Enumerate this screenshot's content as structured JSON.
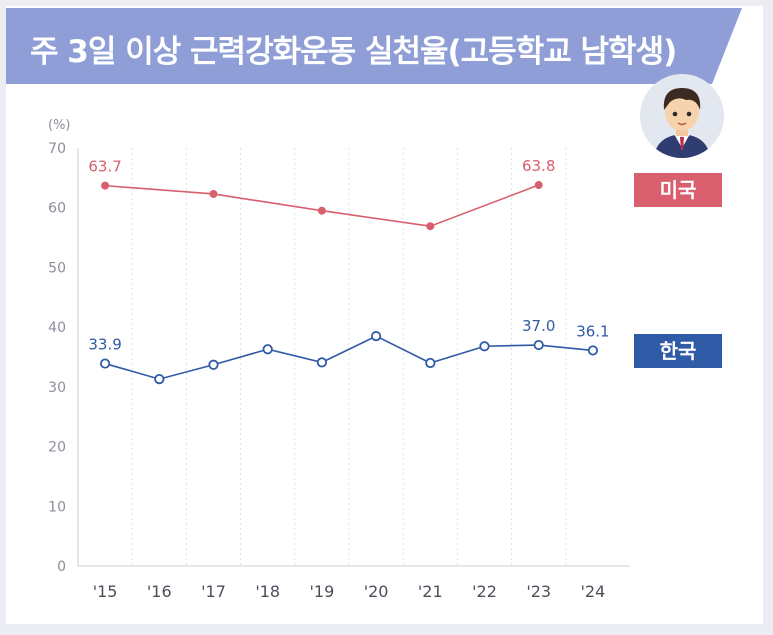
{
  "title": "주 3일 이상 근력강화운동 실천율(고등학교 남학생)",
  "colors": {
    "banner": "#8f9ed6",
    "us": "#d95f6e",
    "korea": "#2e5aa6",
    "grid": "#dde1e8",
    "axis_text": "#8a8f9a"
  },
  "icons": {
    "avatar": "student-avatar-icon"
  },
  "chart_data": {
    "type": "line",
    "title": "주 3일 이상 근력강화운동 실천율(고등학교 남학생)",
    "ylabel": "(%)",
    "ylim": [
      0,
      70
    ],
    "yticks": [
      0,
      10,
      20,
      30,
      40,
      50,
      60,
      70
    ],
    "grid": "vertical dotted",
    "categories": [
      "'15",
      "'16",
      "'17",
      "'18",
      "'19",
      "'20",
      "'21",
      "'22",
      "'23",
      "'24"
    ],
    "series": [
      {
        "name": "미국",
        "color": "#d95f6e",
        "values": [
          63.7,
          null,
          62.3,
          null,
          59.5,
          null,
          56.9,
          null,
          63.8,
          null
        ],
        "labels": [
          "63.7",
          "",
          "",
          "",
          "",
          "",
          "",
          "",
          "63.8",
          ""
        ]
      },
      {
        "name": "한국",
        "color": "#2e5aa6",
        "values": [
          33.9,
          31.3,
          33.7,
          36.3,
          34.1,
          38.5,
          34.0,
          36.8,
          37.0,
          36.1
        ],
        "labels": [
          "33.9",
          "",
          "",
          "",
          "",
          "",
          "",
          "",
          "37.0",
          "36.1"
        ]
      }
    ]
  },
  "legend": {
    "us": "미국",
    "korea": "한국"
  }
}
